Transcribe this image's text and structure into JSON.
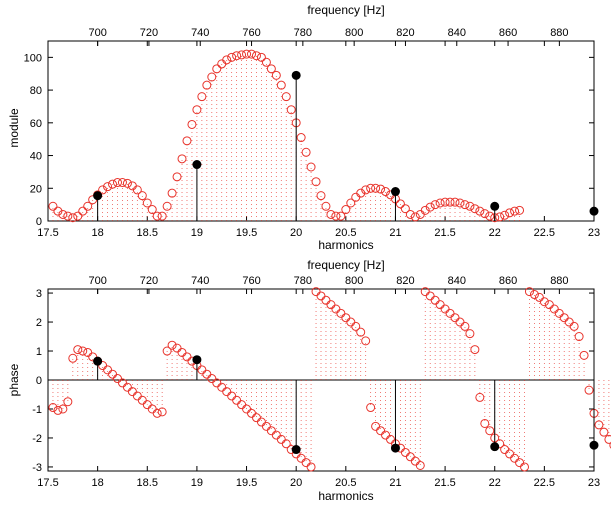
{
  "chart_data": [
    {
      "type": "scatter",
      "xlabel": "harmonics",
      "ylabel": "module",
      "top_xlabel": "frequency [Hz]",
      "xlim": [
        17.5,
        23
      ],
      "ylim": [
        0,
        110
      ],
      "xticks": [
        17.5,
        18,
        18.5,
        19,
        19.5,
        20,
        20.5,
        21,
        21.5,
        22,
        22.5,
        23
      ],
      "xtick_labels": [
        "17.5",
        "18",
        "18.5",
        "19",
        "19.5",
        "20",
        "20.5",
        "21",
        "21.5",
        "22",
        "22.5",
        "23"
      ],
      "yticks": [
        0,
        20,
        40,
        60,
        80,
        100
      ],
      "ytick_labels": [
        "0",
        "20",
        "40",
        "60",
        "80",
        "100"
      ],
      "top_xticks": [
        700,
        720,
        740,
        760,
        780,
        800,
        820,
        840,
        860,
        880
      ],
      "top_xtick_labels": [
        "700",
        "720",
        "740",
        "760",
        "780",
        "800",
        "820",
        "840",
        "860",
        "880"
      ],
      "top_axis_map": {
        "harmonic": [
          18,
          23
        ],
        "frequency": [
          700,
          893.5
        ]
      },
      "grid": false,
      "series": [
        {
          "marker": "open-circle",
          "color": "#e8332b",
          "x_start": 17.55,
          "x_step": 0.05,
          "stems": "dotted",
          "values": [
            9,
            6,
            4,
            3,
            2,
            3,
            6,
            9,
            13,
            16,
            19,
            21,
            22.5,
            23.5,
            23.5,
            23,
            21.5,
            19,
            15.5,
            11,
            7,
            3,
            3,
            9,
            17,
            27,
            38,
            49,
            59,
            68,
            76,
            83,
            88,
            93,
            96,
            98.5,
            100,
            101,
            101.5,
            102,
            102,
            101,
            100,
            97,
            93,
            89,
            83,
            76,
            68,
            60,
            51,
            42,
            33,
            24,
            15.5,
            9,
            4,
            3,
            3,
            7,
            11,
            14.5,
            17,
            19,
            20,
            20,
            19.5,
            18,
            16,
            13.5,
            10.5,
            7.5,
            4,
            2.5,
            4,
            6.5,
            8.5,
            10,
            11,
            11.5,
            11.5,
            11.5,
            11,
            10,
            9,
            7.5,
            6,
            4.5,
            3,
            2,
            2.5,
            3.5,
            5,
            6,
            6.5
          ]
        },
        {
          "marker": "filled-circle",
          "color": "#000000",
          "stems": "solid",
          "x": [
            18,
            19,
            20,
            21,
            22,
            23
          ],
          "values": [
            15.5,
            34.5,
            89,
            18,
            9,
            6
          ]
        }
      ]
    },
    {
      "type": "scatter",
      "xlabel": "harmonics",
      "ylabel": "phase",
      "top_xlabel": "frequency [Hz]",
      "xlim": [
        17.5,
        23
      ],
      "ylim": [
        -3.14,
        3.14
      ],
      "xticks": [
        17.5,
        18,
        18.5,
        19,
        19.5,
        20,
        20.5,
        21,
        21.5,
        22,
        22.5,
        23
      ],
      "xtick_labels": [
        "17.5",
        "18",
        "18.5",
        "19",
        "19.5",
        "20",
        "20.5",
        "21",
        "21.5",
        "22",
        "22.5",
        "23"
      ],
      "yticks": [
        -3,
        -2,
        -1,
        0,
        1,
        2,
        3
      ],
      "ytick_labels": [
        "-3",
        "-2",
        "-1",
        "0",
        "1",
        "2",
        "3"
      ],
      "top_xticks": [
        700,
        720,
        740,
        760,
        780,
        800,
        820,
        840,
        860,
        880
      ],
      "top_xtick_labels": [
        "700",
        "720",
        "740",
        "760",
        "780",
        "800",
        "820",
        "840",
        "860",
        "880"
      ],
      "top_axis_map": {
        "harmonic": [
          18,
          23
        ],
        "frequency": [
          700,
          893.5
        ]
      },
      "zero_line": true,
      "grid": false,
      "series": [
        {
          "marker": "open-circle",
          "color": "#e8332b",
          "x_start": 17.55,
          "x_step": 0.05,
          "stems": "dotted",
          "values": [
            -0.95,
            -1.05,
            -1.0,
            -0.75,
            0.75,
            1.05,
            1.0,
            0.95,
            0.8,
            0.65,
            0.5,
            0.35,
            0.2,
            0.05,
            -0.1,
            -0.25,
            -0.4,
            -0.55,
            -0.7,
            -0.85,
            -1.0,
            -1.15,
            -1.1,
            1.0,
            1.2,
            1.1,
            0.95,
            0.8,
            0.65,
            0.5,
            0.35,
            0.2,
            0.05,
            -0.1,
            -0.25,
            -0.4,
            -0.55,
            -0.7,
            -0.85,
            -1.0,
            -1.15,
            -1.3,
            -1.45,
            -1.6,
            -1.75,
            -1.9,
            -2.05,
            -2.2,
            -2.4,
            -2.55,
            -2.7,
            -2.85,
            -3.0,
            3.05,
            2.9,
            2.75,
            2.6,
            2.45,
            2.3,
            2.15,
            2.0,
            1.85,
            1.65,
            1.35,
            -0.95,
            -1.6,
            -1.75,
            -1.9,
            -2.05,
            -2.2,
            -2.35,
            -2.5,
            -2.65,
            -2.8,
            -2.95,
            3.05,
            2.9,
            2.75,
            2.6,
            2.45,
            2.3,
            2.15,
            2.0,
            1.85,
            1.6,
            1.05,
            -0.6,
            -1.5,
            -1.75,
            -2.0,
            -2.2,
            -2.4,
            -2.55,
            -2.7,
            -2.85,
            -3.0,
            3.05,
            2.95,
            2.85,
            2.7,
            2.6,
            2.45,
            2.3,
            2.15,
            2.0,
            1.85,
            1.5,
            0.85,
            -0.35,
            -1.15,
            -1.55,
            -1.8,
            -2.05,
            -2.25
          ]
        },
        {
          "marker": "filled-circle",
          "color": "#000000",
          "stems": "solid",
          "x": [
            18,
            19,
            20,
            21,
            22,
            23
          ],
          "values": [
            0.65,
            0.7,
            -2.4,
            -2.35,
            -2.3,
            -2.25
          ]
        }
      ]
    }
  ]
}
